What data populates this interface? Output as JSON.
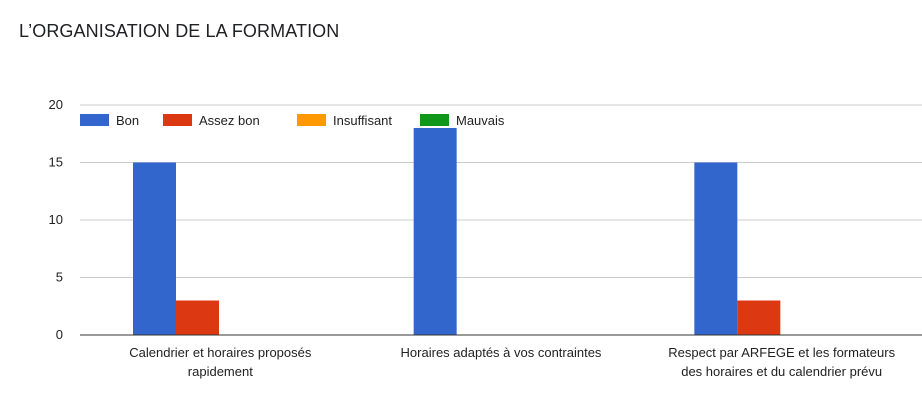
{
  "chart_data": {
    "type": "bar",
    "title": "L’ORGANISATION DE LA FORMATION",
    "categories": [
      [
        "Calendrier et horaires proposés",
        "rapidement"
      ],
      [
        "Horaires adaptés à vos contraintes"
      ],
      [
        "Respect par ARFEGE et les formateurs",
        "des horaires et du calendrier prévu"
      ]
    ],
    "series": [
      {
        "name": "Bon",
        "values": [
          15,
          18,
          15
        ],
        "color": "#3366cc"
      },
      {
        "name": "Assez bon",
        "values": [
          3,
          0,
          3
        ],
        "color": "#dc3912"
      },
      {
        "name": "Insuffisant",
        "values": [
          0,
          0,
          0
        ],
        "color": "#ff9900"
      },
      {
        "name": "Mauvais",
        "values": [
          0,
          0,
          0
        ],
        "color": "#109618"
      }
    ],
    "ylim": [
      0,
      20
    ],
    "yticks": [
      0,
      5,
      10,
      15,
      20
    ],
    "xlabel": "",
    "ylabel": "",
    "grid": true,
    "legend_position": "top-left"
  }
}
